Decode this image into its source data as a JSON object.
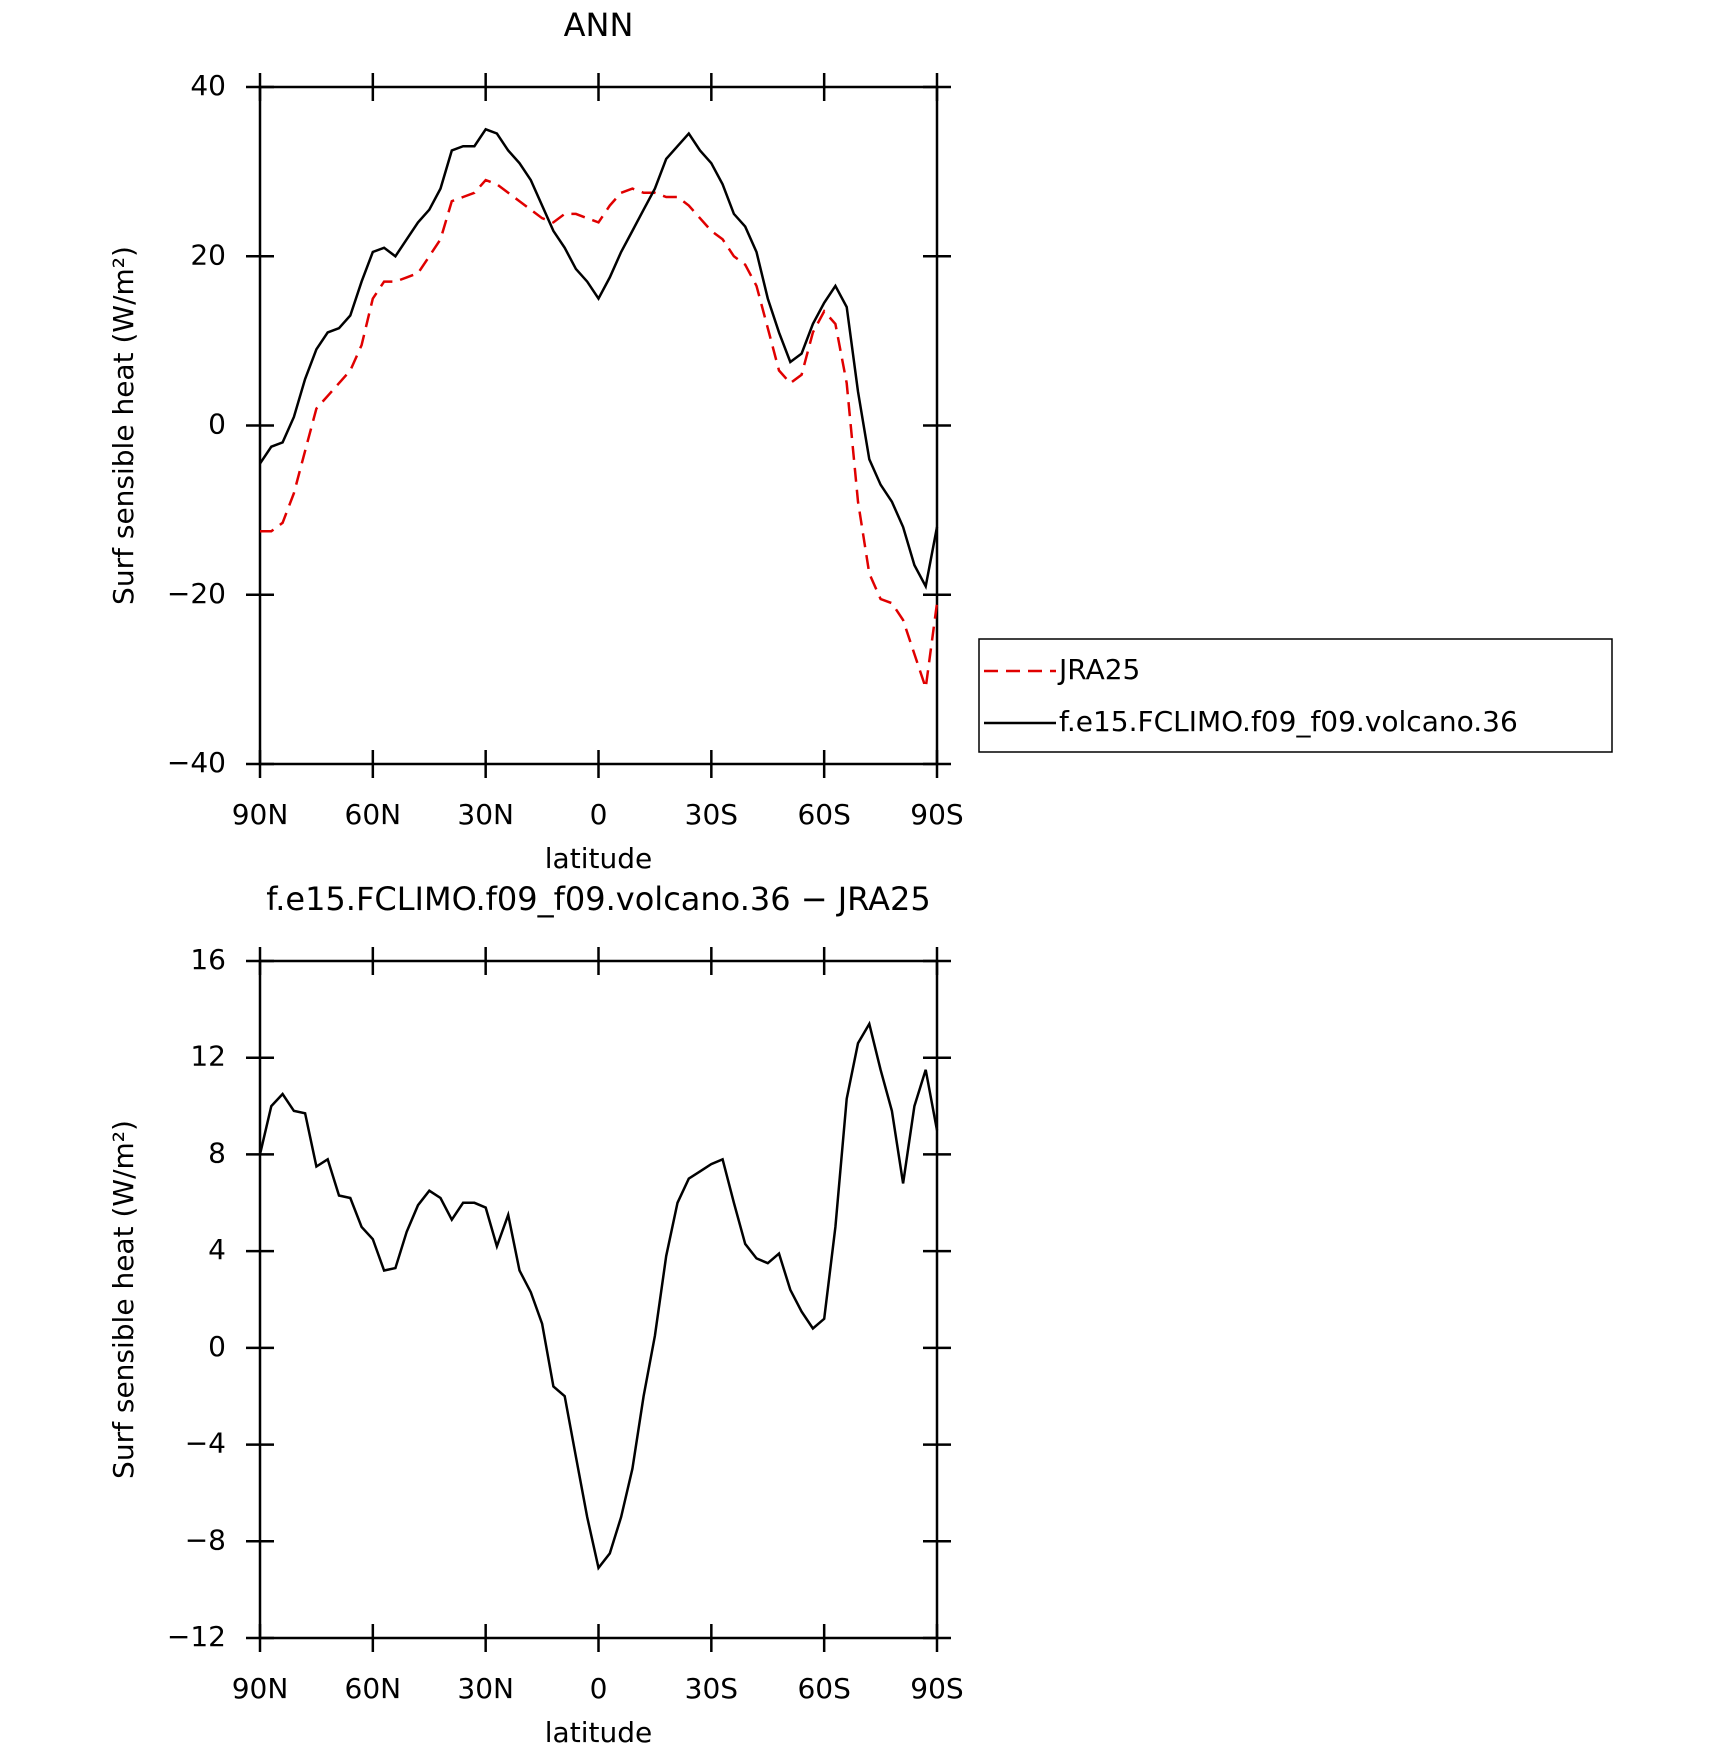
{
  "chart_data": [
    {
      "type": "line",
      "title": "ANN",
      "xlabel": "latitude",
      "ylabel": "Surf sensible heat (W/m²)",
      "x": [
        90,
        87,
        84,
        81,
        78,
        75,
        72,
        69,
        66,
        63,
        60,
        57,
        54,
        51,
        48,
        45,
        42,
        39,
        36,
        33,
        30,
        27,
        24,
        21,
        18,
        15,
        12,
        9,
        6,
        3,
        0,
        -3,
        -6,
        -9,
        -12,
        -15,
        -18,
        -21,
        -24,
        -27,
        -30,
        -33,
        -36,
        -39,
        -42,
        -45,
        -48,
        -51,
        -54,
        -57,
        -60,
        -63,
        -66,
        -69,
        -72,
        -75,
        -78,
        -81,
        -84,
        -87,
        -90
      ],
      "series": [
        {
          "name": "JRA25",
          "color": "#e00000",
          "dash": true,
          "values": [
            -12.5,
            -12.5,
            -11.5,
            -8,
            -3,
            2,
            3.5,
            5,
            6.5,
            9.5,
            15,
            17,
            17,
            17.5,
            18,
            20,
            22,
            26.5,
            27,
            27.5,
            29,
            28.5,
            27.5,
            26.5,
            25.5,
            24.5,
            24,
            25,
            25,
            24.5,
            24,
            26,
            27.5,
            28,
            27.5,
            27.5,
            27,
            27,
            26,
            24.5,
            23,
            22,
            20,
            19,
            16.5,
            11.5,
            6.5,
            5,
            6,
            11,
            13.5,
            12,
            5,
            -9,
            -17.5,
            -20.5,
            -21,
            -23,
            -27,
            -31,
            -21
          ]
        },
        {
          "name": "f.e15.FCLIMO.f09_f09.volcano.36",
          "color": "#000000",
          "dash": false,
          "values": [
            -4.5,
            -2.5,
            -2,
            1,
            5.5,
            9,
            11,
            11.5,
            13,
            17,
            20.5,
            21,
            20,
            22,
            24,
            25.5,
            28,
            32.5,
            33,
            33,
            35,
            34.5,
            32.5,
            31,
            29,
            26,
            23,
            21,
            18.5,
            17,
            15,
            17.5,
            20.5,
            23,
            25.5,
            28,
            31.5,
            33,
            34.5,
            32.5,
            31,
            28.5,
            25,
            23.5,
            20.5,
            15,
            11,
            7.5,
            8.5,
            12,
            14.5,
            16.5,
            14,
            4,
            -4,
            -7,
            -9,
            -12,
            -16.5,
            -19,
            -12
          ]
        }
      ],
      "xlim": [
        90,
        -90
      ],
      "xticks": [
        {
          "value": 90,
          "label": "90N"
        },
        {
          "value": 60,
          "label": "60N"
        },
        {
          "value": 30,
          "label": "30N"
        },
        0,
        {
          "value": -30,
          "label": "30S"
        },
        {
          "value": -60,
          "label": "60S"
        },
        {
          "value": -90,
          "label": "90S"
        }
      ],
      "ylim": [
        -40,
        40
      ],
      "yticks": [
        {
          "value": -40,
          "label": "−40"
        },
        {
          "value": -20,
          "label": "−20"
        },
        0,
        20,
        40
      ],
      "legend": "right"
    },
    {
      "type": "line",
      "title": "f.e15.FCLIMO.f09_f09.volcano.36 − JRA25",
      "xlabel": "latitude",
      "ylabel": "Surf sensible heat (W/m²)",
      "x": [
        90,
        87,
        84,
        81,
        78,
        75,
        72,
        69,
        66,
        63,
        60,
        57,
        54,
        51,
        48,
        45,
        42,
        39,
        36,
        33,
        30,
        27,
        24,
        21,
        18,
        15,
        12,
        9,
        6,
        3,
        0,
        -3,
        -6,
        -9,
        -12,
        -15,
        -18,
        -21,
        -24,
        -27,
        -30,
        -33,
        -36,
        -39,
        -42,
        -45,
        -48,
        -51,
        -54,
        -57,
        -60,
        -63,
        -66,
        -69,
        -72,
        -75,
        -78,
        -81,
        -84,
        -87,
        -90
      ],
      "color": "#000000",
      "values": [
        8,
        10,
        10.5,
        9.8,
        9.7,
        7.5,
        7.8,
        6.3,
        6.2,
        5,
        4.5,
        3.2,
        3.3,
        4.8,
        5.9,
        6.5,
        6.2,
        5.3,
        6,
        6,
        5.8,
        4.2,
        5.5,
        3.2,
        2.3,
        1,
        -1.6,
        -2,
        -4.5,
        -7,
        -9.1,
        -8.5,
        -7,
        -5,
        -2,
        0.5,
        3.8,
        6,
        7,
        7.3,
        7.6,
        7.8,
        6,
        4.3,
        3.7,
        3.5,
        3.9,
        2.4,
        1.5,
        0.8,
        1.2,
        5,
        10.3,
        12.6,
        13.4,
        11.5,
        9.8,
        6.8,
        10,
        11.5,
        9
      ],
      "xlim": [
        90,
        -90
      ],
      "xticks": [
        {
          "value": 90,
          "label": "90N"
        },
        {
          "value": 60,
          "label": "60N"
        },
        {
          "value": 30,
          "label": "30N"
        },
        0,
        {
          "value": -30,
          "label": "30S"
        },
        {
          "value": -60,
          "label": "60S"
        },
        {
          "value": -90,
          "label": "90S"
        }
      ],
      "ylim": [
        -12,
        16
      ],
      "yticks": [
        {
          "value": -12,
          "label": "−12"
        },
        {
          "value": -8,
          "label": "−8"
        },
        {
          "value": -4,
          "label": "−4"
        },
        0,
        4,
        8,
        12,
        16
      ]
    }
  ]
}
